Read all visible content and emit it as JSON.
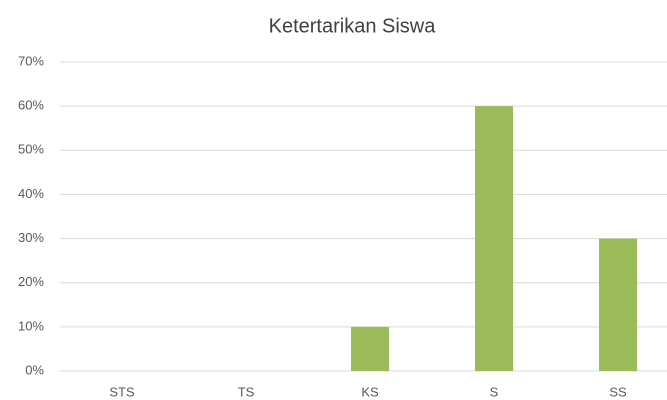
{
  "chart_data": {
    "type": "bar",
    "title": "Ketertarikan Siswa",
    "categories": [
      "STS",
      "TS",
      "KS",
      "S",
      "SS"
    ],
    "values": [
      0,
      0,
      10,
      60,
      30
    ],
    "color": "#9bbb59",
    "ylim": [
      0,
      70
    ],
    "yticks": [
      {
        "value": 0,
        "label": "0%"
      },
      {
        "value": 10,
        "label": "10%"
      },
      {
        "value": 20,
        "label": "20%"
      },
      {
        "value": 30,
        "label": "30%"
      },
      {
        "value": 40,
        "label": "40%"
      },
      {
        "value": 50,
        "label": "50%"
      },
      {
        "value": 60,
        "label": "60%"
      },
      {
        "value": 70,
        "label": "70%"
      }
    ],
    "grid": true
  }
}
